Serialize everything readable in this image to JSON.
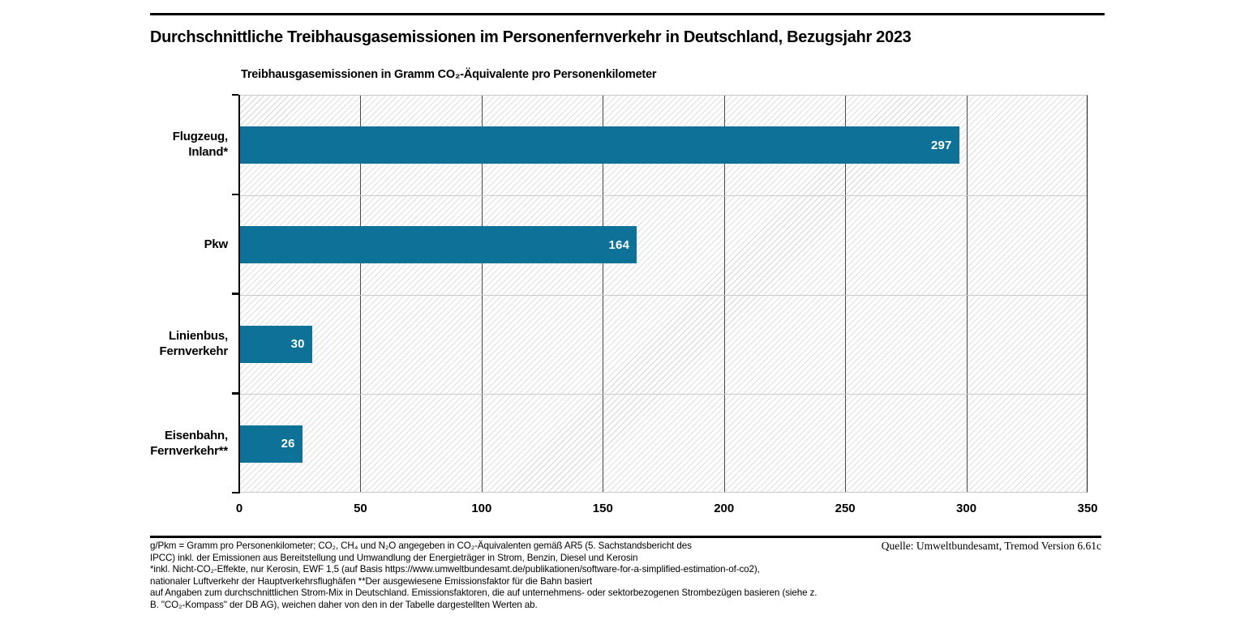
{
  "header": {
    "title": "Durchschnittliche Treibhausgasemissionen im Personenfernverkehr in Deutschland, Bezugsjahr 2023"
  },
  "chart_data": {
    "type": "bar",
    "orientation": "horizontal",
    "axis_title": "Treibhausgasemissionen in Gramm CO₂-Äquivalente pro Personenkilometer",
    "categories": [
      "Flugzeug, Inland*",
      "Pkw",
      "Linienbus, Fernverkehr",
      "Eisenbahn, Fernverkehr**"
    ],
    "category_label_lines": [
      [
        "Flugzeug,",
        "Inland*"
      ],
      [
        "Pkw"
      ],
      [
        "Linienbus,",
        "Fernverkehr"
      ],
      [
        "Eisenbahn,",
        "Fernverkehr**"
      ]
    ],
    "values": [
      297,
      164,
      30,
      26
    ],
    "value_labels": [
      "297",
      "164",
      "30",
      "26"
    ],
    "icons": [
      "airplane",
      "car",
      "bus",
      "train"
    ],
    "xlim": [
      0,
      350
    ],
    "xticks": [
      "0",
      "50",
      "100",
      "150",
      "200",
      "250",
      "300",
      "350"
    ],
    "grid": "vertical dark gridlines every 50; light horizontal row separators; hatched plot background",
    "legend_position": "none",
    "colors": {
      "bar": "#0d7198",
      "value_label": "#ffffff",
      "grid_vertical": "#4a4a4a",
      "grid_horizontal": "#cbcbcb",
      "axis": "#000000",
      "hatch_line": "#dedede",
      "icon": "#000000"
    }
  },
  "footer": {
    "notes": [
      "g/Pkm = Gramm pro Personenkilometer; CO₂, CH₄ und N₂O angegeben in CO₂-Äquivalenten gemäß AR5 (5. Sachstandsbericht des",
      "IPCC) inkl. der Emissionen aus Bereitstellung und Umwandlung der Energieträger in Strom, Benzin, Diesel und Kerosin",
      "*inkl. Nicht-CO₂-Effekte, nur Kerosin, EWF 1,5 (auf Basis https://www.umweltbundesamt.de/publikationen/software-for-a-simplified-estimation-of-co2),",
      "nationaler Luftverkehr der Hauptverkehrsflughäfen **Der ausgewiesene Emissionsfaktor für die Bahn basiert",
      "auf Angaben zum durchschnittlichen Strom-Mix in Deutschland. Emissionsfaktoren, die auf unternehmens- oder sektorbezogenen Strombezügen basieren (siehe z.",
      "B. \"CO₂-Kompass\" der DB AG), weichen daher von den in der Tabelle dargestellten Werten ab."
    ],
    "source": "Quelle: Umweltbundesamt, Tremod Version 6.61c"
  }
}
